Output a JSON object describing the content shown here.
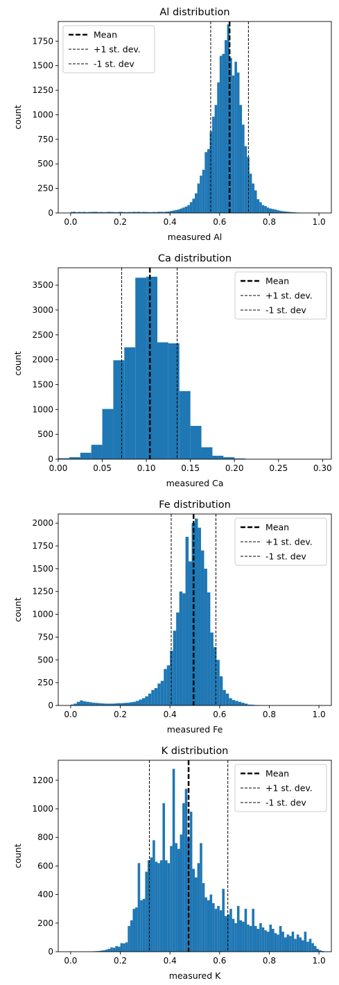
{
  "chart_data": [
    {
      "type": "bar",
      "title": "Al distribution",
      "xlabel": "measured Al",
      "ylabel": "count",
      "xlim": [
        -0.05,
        1.05
      ],
      "ylim": [
        0,
        1950
      ],
      "xticks": [
        0.0,
        0.2,
        0.4,
        0.6,
        0.8,
        1.0
      ],
      "xtick_labels": [
        "0.0",
        "0.2",
        "0.4",
        "0.6",
        "0.8",
        "1.0"
      ],
      "yticks": [
        0,
        250,
        500,
        750,
        1000,
        1250,
        1500,
        1750
      ],
      "ytick_labels": [
        "0",
        "250",
        "500",
        "750",
        "1000",
        "1250",
        "1500",
        "1750"
      ],
      "bin_start": 0.0,
      "bin_width": 0.01,
      "values": [
        10,
        12,
        8,
        10,
        9,
        11,
        8,
        9,
        10,
        12,
        11,
        9,
        10,
        8,
        9,
        12,
        10,
        9,
        8,
        10,
        11,
        9,
        8,
        10,
        9,
        11,
        10,
        12,
        9,
        11,
        10,
        9,
        8,
        10,
        9,
        12,
        11,
        10,
        13,
        15,
        20,
        25,
        30,
        35,
        45,
        55,
        65,
        80,
        110,
        145,
        200,
        300,
        380,
        440,
        620,
        650,
        830,
        980,
        1100,
        1330,
        1600,
        1620,
        1760,
        1920,
        1580,
        1400,
        1540,
        1430,
        1100,
        900,
        680,
        570,
        400,
        300,
        230,
        140,
        110,
        80,
        70,
        55,
        45,
        40,
        35,
        28,
        22,
        18,
        15,
        12,
        10,
        8,
        6,
        4,
        3,
        2,
        2,
        1,
        1,
        1,
        1,
        1
      ],
      "mean": 0.64,
      "plus_std": 0.716,
      "minus_std": 0.564,
      "legend": [
        "Mean",
        "+1 st. dev.",
        "-1 st. dev"
      ],
      "legend_loc": "upper left",
      "color": "#1f77b4",
      "grid": false
    },
    {
      "type": "bar",
      "title": "Ca distribution",
      "xlabel": "measured Ca",
      "ylabel": "count",
      "xlim": [
        0.0,
        0.31
      ],
      "ylim": [
        0,
        3850
      ],
      "xticks": [
        0.0,
        0.05,
        0.1,
        0.15,
        0.2,
        0.25,
        0.3
      ],
      "xtick_labels": [
        "0.00",
        "0.05",
        "0.10",
        "0.15",
        "0.20",
        "0.25",
        "0.30"
      ],
      "yticks": [
        0,
        500,
        1000,
        1500,
        2000,
        2500,
        3000,
        3500
      ],
      "ytick_labels": [
        "0",
        "500",
        "1000",
        "1500",
        "2000",
        "2500",
        "3000",
        "3500"
      ],
      "bin_start": 0.0,
      "bin_width": 0.0125,
      "values": [
        20,
        40,
        130,
        290,
        1010,
        1990,
        2250,
        3650,
        3670,
        2350,
        2330,
        1370,
        670,
        240,
        70,
        40,
        15,
        5,
        3,
        2,
        1,
        1,
        1,
        1
      ],
      "mean": 0.104,
      "plus_std": 0.135,
      "minus_std": 0.072,
      "legend": [
        "Mean",
        "+1 st. dev.",
        "-1 st. dev"
      ],
      "legend_loc": "upper right",
      "color": "#1f77b4",
      "grid": false
    },
    {
      "type": "bar",
      "title": "Fe distribution",
      "xlabel": "measured Fe",
      "ylabel": "count",
      "xlim": [
        -0.05,
        1.05
      ],
      "ylim": [
        0,
        2100
      ],
      "xticks": [
        0.0,
        0.2,
        0.4,
        0.6,
        0.8,
        1.0
      ],
      "xtick_labels": [
        "0.0",
        "0.2",
        "0.4",
        "0.6",
        "0.8",
        "1.0"
      ],
      "yticks": [
        0,
        250,
        500,
        750,
        1000,
        1250,
        1500,
        1750,
        2000
      ],
      "ytick_labels": [
        "0",
        "250",
        "500",
        "750",
        "1000",
        "1250",
        "1500",
        "1750",
        "2000"
      ],
      "bin_start": 0.0,
      "bin_width": 0.0125,
      "values": [
        10,
        20,
        40,
        55,
        45,
        40,
        35,
        30,
        28,
        25,
        22,
        20,
        20,
        20,
        22,
        25,
        25,
        28,
        30,
        35,
        40,
        50,
        65,
        80,
        100,
        130,
        170,
        190,
        240,
        270,
        400,
        440,
        600,
        820,
        1020,
        1250,
        1230,
        1850,
        1580,
        2000,
        2050,
        1950,
        1700,
        1500,
        1240,
        800,
        640,
        500,
        320,
        170,
        130,
        80,
        60,
        50,
        40,
        30,
        20,
        10,
        8,
        5,
        4,
        3,
        2,
        2,
        1,
        1,
        1,
        1,
        1,
        1,
        1,
        1,
        1,
        1,
        1,
        1,
        1,
        1,
        1,
        1,
        1
      ],
      "mean": 0.495,
      "plus_std": 0.585,
      "minus_std": 0.405,
      "legend": [
        "Mean",
        "+1 st. dev.",
        "-1 st. dev"
      ],
      "legend_loc": "upper right",
      "color": "#1f77b4",
      "grid": false
    },
    {
      "type": "bar",
      "title": "K distribution",
      "xlabel": "measured K",
      "ylabel": "count",
      "xlim": [
        -0.05,
        1.05
      ],
      "ylim": [
        0,
        1340
      ],
      "xticks": [
        0.0,
        0.2,
        0.4,
        0.6,
        0.8,
        1.0
      ],
      "xtick_labels": [
        "0.0",
        "0.2",
        "0.4",
        "0.6",
        "0.8",
        "1.0"
      ],
      "yticks": [
        0,
        200,
        400,
        600,
        800,
        1000,
        1200
      ],
      "ytick_labels": [
        "0",
        "200",
        "400",
        "600",
        "800",
        "1000",
        "1200"
      ],
      "bin_start": 0.0,
      "bin_width": 0.01,
      "values": [
        0,
        0,
        0,
        0,
        0,
        0,
        0,
        0,
        2,
        3,
        4,
        5,
        8,
        10,
        15,
        20,
        30,
        28,
        40,
        35,
        60,
        58,
        65,
        180,
        220,
        300,
        310,
        620,
        360,
        370,
        560,
        640,
        660,
        780,
        630,
        620,
        640,
        1040,
        640,
        620,
        740,
        1280,
        760,
        720,
        820,
        1040,
        1140,
        800,
        980,
        580,
        520,
        620,
        760,
        480,
        380,
        360,
        400,
        340,
        300,
        320,
        290,
        440,
        250,
        260,
        300,
        230,
        200,
        320,
        220,
        210,
        300,
        190,
        180,
        300,
        180,
        160,
        200,
        170,
        150,
        140,
        190,
        160,
        130,
        120,
        180,
        140,
        100,
        120,
        110,
        140,
        90,
        120,
        100,
        80,
        140,
        70,
        90,
        60,
        40,
        20,
        10,
        5,
        2,
        1,
        1,
        1
      ],
      "mean": 0.475,
      "plus_std": 0.633,
      "minus_std": 0.317,
      "legend": [
        "Mean",
        "+1 st. dev.",
        "-1 st. dev"
      ],
      "legend_loc": "upper right",
      "color": "#1f77b4",
      "grid": false
    }
  ]
}
